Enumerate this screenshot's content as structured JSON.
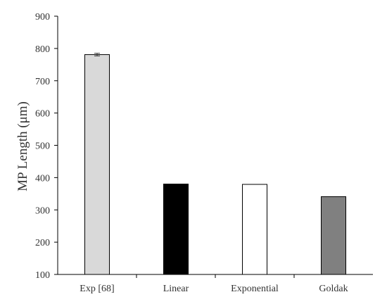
{
  "chart_data": {
    "type": "bar",
    "title": "",
    "xlabel": "",
    "ylabel": "MP Length (μm)",
    "ylim": [
      100,
      900
    ],
    "yticks": [
      100,
      200,
      300,
      400,
      500,
      600,
      700,
      800,
      900
    ],
    "grid": false,
    "legend": "none",
    "categories": [
      "Exp [68]",
      "Linear",
      "Exponential",
      "Goldak"
    ],
    "values": [
      781,
      380,
      379,
      341
    ],
    "error": [
      4,
      null,
      null,
      null
    ],
    "bar_fills": [
      "#d9d9d9",
      "#000000",
      "#ffffff",
      "#808080"
    ],
    "bar_stroke": "#000000",
    "axis_color": "#000000"
  }
}
